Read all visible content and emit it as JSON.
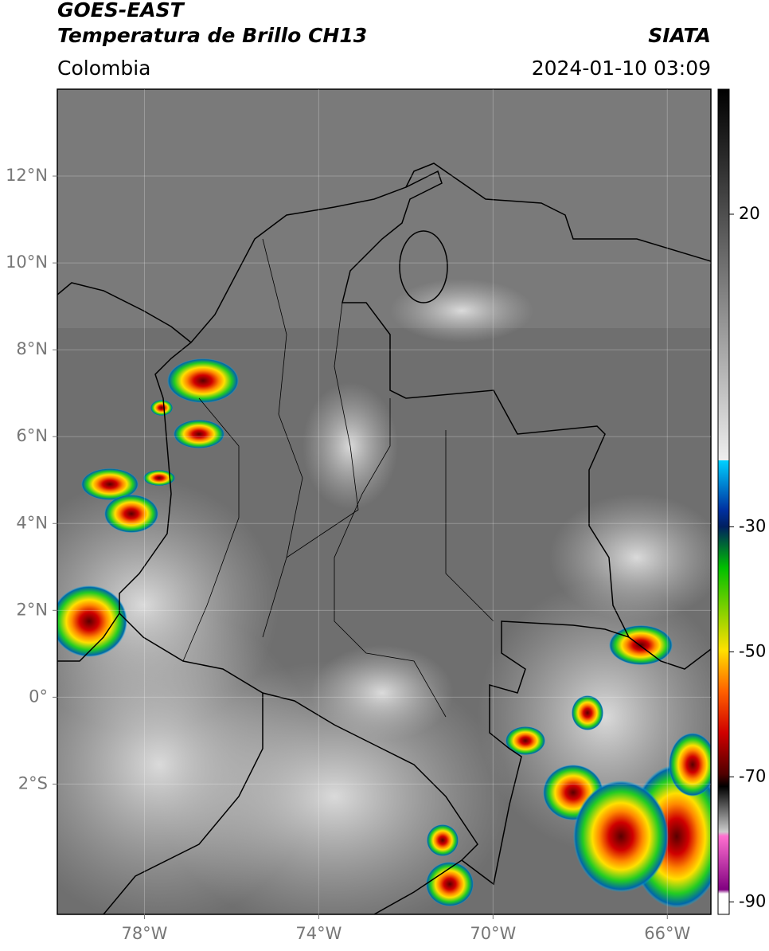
{
  "header": {
    "title": "GOES-EAST",
    "subtitle": "Temperatura de Brillo CH13",
    "region": "Colombia",
    "source": "SIATA",
    "timestamp": "2024-01-10 03:09"
  },
  "map": {
    "xlim": [
      -80,
      -65
    ],
    "ylim": [
      -5,
      14
    ],
    "xticks": [
      {
        "value": -78,
        "label": "78°W"
      },
      {
        "value": -74,
        "label": "74°W"
      },
      {
        "value": -70,
        "label": "70°W"
      },
      {
        "value": -66,
        "label": "66°W"
      }
    ],
    "yticks": [
      {
        "value": 12,
        "label": "12°N"
      },
      {
        "value": 10,
        "label": "10°N"
      },
      {
        "value": 8,
        "label": "8°N"
      },
      {
        "value": 6,
        "label": "6°N"
      },
      {
        "value": 4,
        "label": "4°N"
      },
      {
        "value": 2,
        "label": "2°N"
      },
      {
        "value": 0,
        "label": "0°"
      },
      {
        "value": -2,
        "label": "2°S"
      }
    ],
    "grid": true
  },
  "colorbar": {
    "lim": [
      -92,
      40
    ],
    "ticks": [
      20,
      -30,
      -50,
      -70,
      -90
    ]
  }
}
